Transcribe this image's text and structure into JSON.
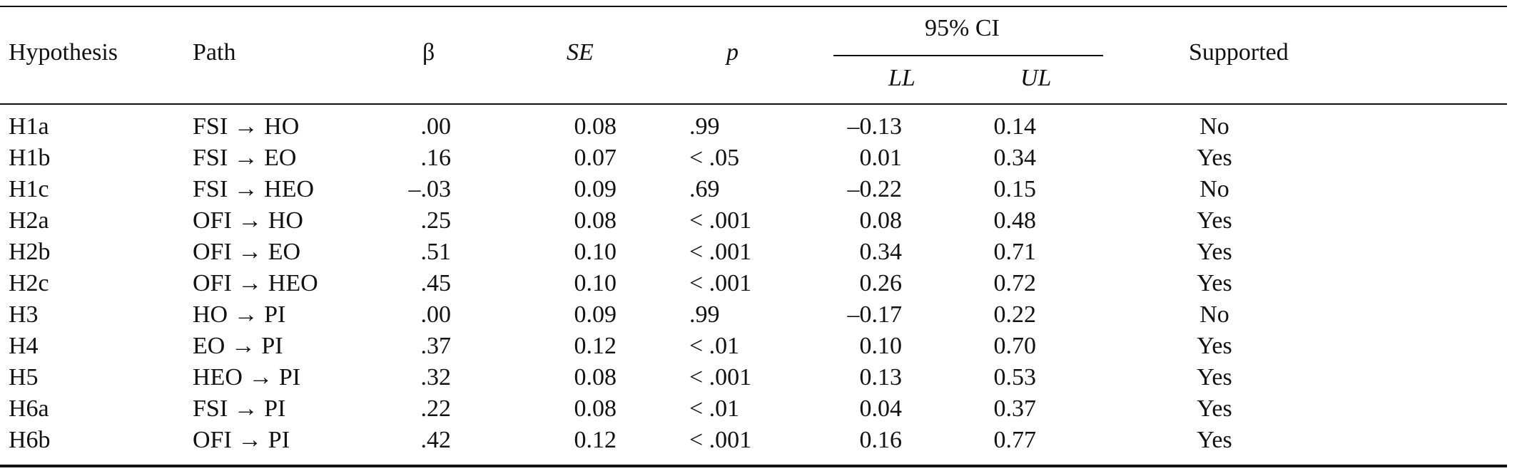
{
  "table": {
    "headers": {
      "hypothesis": "Hypothesis",
      "path": "Path",
      "beta": "β",
      "se": "SE",
      "p": "p",
      "ci": "95% CI",
      "ll": "LL",
      "ul": "UL",
      "supported": "Supported"
    },
    "rows": [
      {
        "hypothesis": "H1a",
        "path": "FSI → HO",
        "beta": ".00",
        "se": "0.08",
        "p": ".99",
        "ll": "–0.13",
        "ul": "0.14",
        "supported": "No"
      },
      {
        "hypothesis": "H1b",
        "path": "FSI → EO",
        "beta": ".16",
        "se": "0.07",
        "p": "< .05",
        "ll": "0.01",
        "ul": "0.34",
        "supported": "Yes"
      },
      {
        "hypothesis": "H1c",
        "path": "FSI → HEO",
        "beta": "–.03",
        "se": "0.09",
        "p": ".69",
        "ll": "–0.22",
        "ul": "0.15",
        "supported": "No"
      },
      {
        "hypothesis": "H2a",
        "path": "OFI → HO",
        "beta": ".25",
        "se": "0.08",
        "p": "< .001",
        "ll": "0.08",
        "ul": "0.48",
        "supported": "Yes"
      },
      {
        "hypothesis": "H2b",
        "path": "OFI → EO",
        "beta": ".51",
        "se": "0.10",
        "p": "< .001",
        "ll": "0.34",
        "ul": "0.71",
        "supported": "Yes"
      },
      {
        "hypothesis": "H2c",
        "path": "OFI → HEO",
        "beta": ".45",
        "se": "0.10",
        "p": "< .001",
        "ll": "0.26",
        "ul": "0.72",
        "supported": "Yes"
      },
      {
        "hypothesis": "H3",
        "path": "HO → PI",
        "beta": ".00",
        "se": "0.09",
        "p": ".99",
        "ll": "–0.17",
        "ul": "0.22",
        "supported": "No"
      },
      {
        "hypothesis": "H4",
        "path": "EO → PI",
        "beta": ".37",
        "se": "0.12",
        "p": "< .01",
        "ll": "0.10",
        "ul": "0.70",
        "supported": "Yes"
      },
      {
        "hypothesis": "H5",
        "path": "HEO → PI",
        "beta": ".32",
        "se": "0.08",
        "p": "< .001",
        "ll": "0.13",
        "ul": "0.53",
        "supported": "Yes"
      },
      {
        "hypothesis": "H6a",
        "path": "FSI → PI",
        "beta": ".22",
        "se": "0.08",
        "p": "< .01",
        "ll": "0.04",
        "ul": "0.37",
        "supported": "Yes"
      },
      {
        "hypothesis": "H6b",
        "path": "OFI → PI",
        "beta": ".42",
        "se": "0.12",
        "p": "< .001",
        "ll": "0.16",
        "ul": "0.77",
        "supported": "Yes"
      }
    ]
  }
}
